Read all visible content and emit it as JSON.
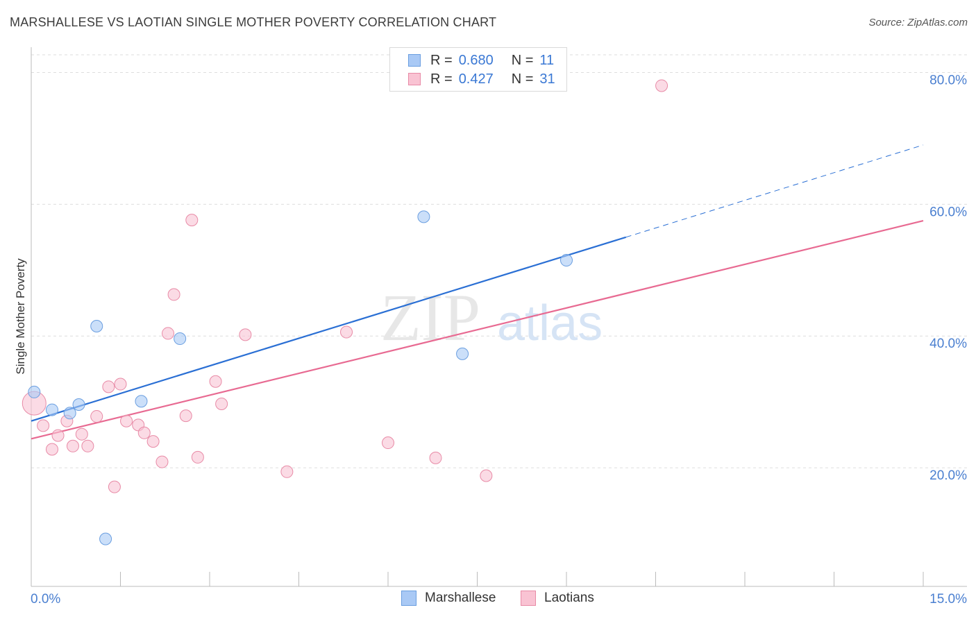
{
  "title": "MARSHALLESE VS LAOTIAN SINGLE MOTHER POVERTY CORRELATION CHART",
  "source": "Source: ZipAtlas.com",
  "watermark": {
    "zip": "ZIP",
    "atlas": "atlas"
  },
  "legend": {
    "rows": [
      {
        "r_label": "R =",
        "r_value": "0.680",
        "n_label": "N =",
        "n_value": "11",
        "color": "#a9c9f5",
        "border": "#6a9ee0"
      },
      {
        "r_label": "R =",
        "r_value": "0.427",
        "n_label": "N =",
        "n_value": "31",
        "color": "#f9c3d3",
        "border": "#e88aa6"
      }
    ]
  },
  "bottom_legend": [
    {
      "label": "Marshallese",
      "color": "#a9c9f5",
      "border": "#6a9ee0"
    },
    {
      "label": "Laotians",
      "color": "#f9c3d3",
      "border": "#e88aa6"
    }
  ],
  "chart_data": {
    "type": "scatter",
    "title": "MARSHALLESE VS LAOTIAN SINGLE MOTHER POVERTY CORRELATION CHART",
    "xlabel": "",
    "ylabel": "Single Mother Poverty",
    "xlim": [
      0,
      15
    ],
    "ylim": [
      2,
      83
    ],
    "x_ticks": [
      {
        "value": 0,
        "label": "0.0%"
      },
      {
        "value": 15,
        "label": "15.0%"
      }
    ],
    "y_ticks": [
      {
        "value": 20,
        "label": "20.0%"
      },
      {
        "value": 40,
        "label": "40.0%"
      },
      {
        "value": 60,
        "label": "60.0%"
      },
      {
        "value": 80,
        "label": "80.0%"
      }
    ],
    "grid": true,
    "series": [
      {
        "name": "Marshallese",
        "color": "#a9c9f5",
        "edge": "#6a9ee0",
        "line_color": "#2a6fd4",
        "points": [
          {
            "x": 0.05,
            "y": 31.5
          },
          {
            "x": 0.35,
            "y": 28.8
          },
          {
            "x": 0.65,
            "y": 28.3
          },
          {
            "x": 0.8,
            "y": 29.6
          },
          {
            "x": 1.1,
            "y": 41.5
          },
          {
            "x": 1.25,
            "y": 9.2
          },
          {
            "x": 1.85,
            "y": 30.1
          },
          {
            "x": 2.5,
            "y": 39.6
          },
          {
            "x": 6.6,
            "y": 58.1
          },
          {
            "x": 7.25,
            "y": 37.3
          },
          {
            "x": 9.0,
            "y": 51.5
          }
        ],
        "trend": {
          "x0": 0,
          "y0": 27.1,
          "x1": 10.0,
          "y1": 55.0,
          "x_dash_end": 15.0,
          "y_dash_end": 69.0
        }
      },
      {
        "name": "Laotians",
        "color": "#f9c3d3",
        "edge": "#e88aa6",
        "line_color": "#e86a92",
        "points": [
          {
            "x": 0.05,
            "y": 29.8
          },
          {
            "x": 0.2,
            "y": 26.4
          },
          {
            "x": 0.35,
            "y": 22.8
          },
          {
            "x": 0.45,
            "y": 24.9
          },
          {
            "x": 0.6,
            "y": 27.1
          },
          {
            "x": 0.7,
            "y": 23.3
          },
          {
            "x": 0.85,
            "y": 25.1
          },
          {
            "x": 0.95,
            "y": 23.3
          },
          {
            "x": 1.1,
            "y": 27.8
          },
          {
            "x": 1.3,
            "y": 32.3
          },
          {
            "x": 1.4,
            "y": 17.1
          },
          {
            "x": 1.5,
            "y": 32.7
          },
          {
            "x": 1.6,
            "y": 27.1
          },
          {
            "x": 1.8,
            "y": 26.5
          },
          {
            "x": 1.9,
            "y": 25.3
          },
          {
            "x": 2.05,
            "y": 24.0
          },
          {
            "x": 2.2,
            "y": 20.9
          },
          {
            "x": 2.3,
            "y": 40.4
          },
          {
            "x": 2.4,
            "y": 46.3
          },
          {
            "x": 2.6,
            "y": 27.9
          },
          {
            "x": 2.7,
            "y": 57.6
          },
          {
            "x": 2.8,
            "y": 21.6
          },
          {
            "x": 3.1,
            "y": 33.1
          },
          {
            "x": 3.2,
            "y": 29.7
          },
          {
            "x": 3.6,
            "y": 40.2
          },
          {
            "x": 4.3,
            "y": 19.4
          },
          {
            "x": 5.3,
            "y": 40.6
          },
          {
            "x": 6.0,
            "y": 23.8
          },
          {
            "x": 6.8,
            "y": 21.5
          },
          {
            "x": 7.65,
            "y": 18.8
          },
          {
            "x": 10.6,
            "y": 78.0
          }
        ],
        "trend": {
          "x0": 0,
          "y0": 24.4,
          "x1": 15.0,
          "y1": 57.5
        }
      }
    ]
  }
}
